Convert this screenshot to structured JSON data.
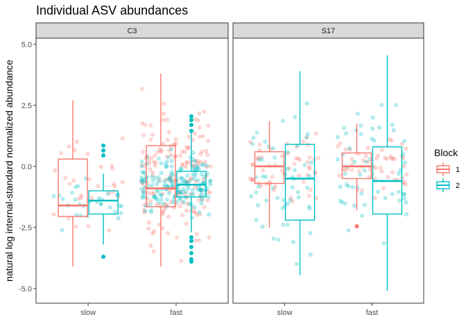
{
  "chart_data": {
    "type": "boxplot",
    "title": "Individual ASV abundances",
    "ylabel": "natural log internal-standard normalized abundance",
    "xlabel": "",
    "ylim": [
      -5.6,
      5.25
    ],
    "y_ticks": [
      5.0,
      2.5,
      0.0,
      -2.5,
      -5.0
    ],
    "y_tick_labels": [
      "5.0",
      "2.5",
      "0.0",
      "-2.5",
      "-5.0"
    ],
    "categories": [
      "slow",
      "fast"
    ],
    "grid": false,
    "legend": {
      "title": "Block",
      "position": "right",
      "entries": [
        "1",
        "2"
      ]
    },
    "colors": {
      "1": "#F8766D",
      "2": "#00BFC4"
    },
    "facets": [
      {
        "label": "C3",
        "boxes": [
          {
            "category": "slow",
            "block": "1",
            "whisker_low": -4.1,
            "q1": -2.05,
            "median": -1.6,
            "q3": 0.3,
            "whisker_high": 2.7,
            "outliers": []
          },
          {
            "category": "slow",
            "block": "2",
            "whisker_low": -3.2,
            "q1": -1.95,
            "median": -1.4,
            "q3": -1.0,
            "whisker_high": -0.3,
            "outliers": [
              0.85,
              0.65,
              0.45,
              -3.7
            ]
          },
          {
            "category": "fast",
            "block": "1",
            "whisker_low": -4.1,
            "q1": -1.65,
            "median": -0.9,
            "q3": 0.85,
            "whisker_high": 3.8,
            "outliers": []
          },
          {
            "category": "fast",
            "block": "2",
            "whisker_low": -2.7,
            "q1": -1.25,
            "median": -0.75,
            "q3": -0.2,
            "whisker_high": 1.4,
            "outliers": [
              2.05,
              1.9,
              1.7,
              1.45,
              -2.9,
              -3.05,
              -3.3,
              -3.55,
              -3.8,
              -3.9
            ]
          }
        ]
      },
      {
        "label": "S17",
        "boxes": [
          {
            "category": "slow",
            "block": "1",
            "whisker_low": -2.5,
            "q1": -0.7,
            "median": 0.0,
            "q3": 0.6,
            "whisker_high": 1.85,
            "outliers": []
          },
          {
            "category": "slow",
            "block": "2",
            "whisker_low": -4.45,
            "q1": -2.2,
            "median": -0.5,
            "q3": 0.9,
            "whisker_high": 3.9,
            "outliers": []
          },
          {
            "category": "fast",
            "block": "1",
            "whisker_low": -1.8,
            "q1": -0.5,
            "median": 0.0,
            "q3": 0.55,
            "whisker_high": 1.75,
            "outliers": [
              -2.45
            ]
          },
          {
            "category": "fast",
            "block": "2",
            "whisker_low": -5.1,
            "q1": -1.95,
            "median": -0.6,
            "q3": 0.8,
            "whisker_high": 4.55,
            "outliers": []
          }
        ]
      }
    ]
  }
}
